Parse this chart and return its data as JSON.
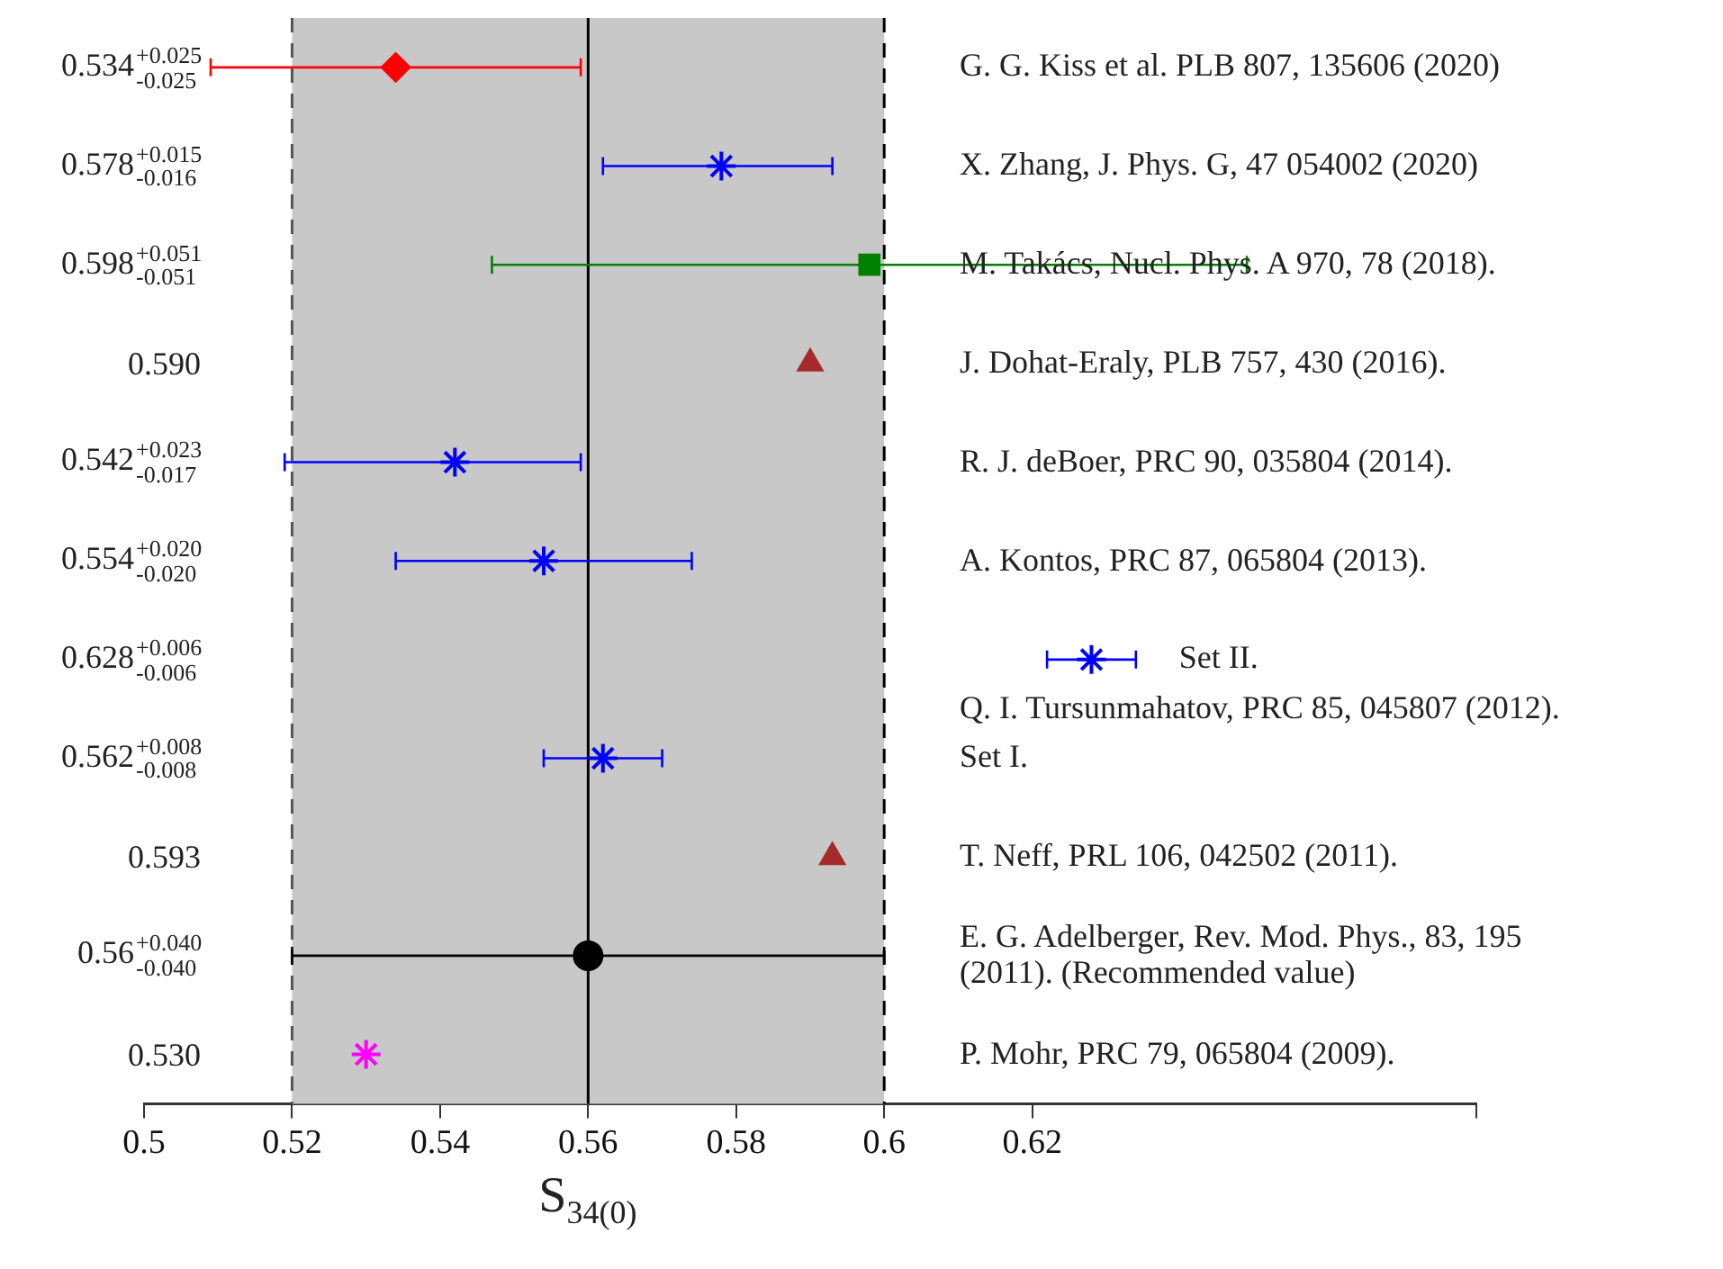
{
  "chart_data": {
    "type": "scatter",
    "orientation": "horizontal",
    "xlabel": "S$_{34(0)}$",
    "categories": [
      "0.534$^{+0.025}$$_{-0.025}$",
      "0.578$^{+0.015}$$_{-0.016}$",
      "0.598$^{+0.051}$$_{-0.051}$",
      "0.590",
      "0.542$^{+0.023}$$_{-0.017}$",
      "0.554$^{+0.020}$$_{-0.020}$",
      "0.628$^{+0.006}$$_{-0.006}$",
      "0.562$^{+0.008}$$_{-0.008}$",
      "0.593",
      "0.56$^{+0.040}$$_{-0.040}$",
      "0.530"
    ],
    "y2_categories": [
      "G. G. Kiss et al. PLB 807, 135606 (2020)",
      "X. Zhang, J. Phys. G, 47 054002 (2020)",
      "M. Takács, Nucl. Phys. A 970, 78 (2018).",
      "J. Dohat-Eraly, PLB 757, 430 (2016).",
      "R. J. deBoer, PRC 90, 035804 (2014).",
      "A. Kontos, PRC 87, 065804 (2013).",
      "Set II.",
      "Set I.",
      "T. Neff, PRL 106, 042502 (2011).",
      "E. G. Adelberger, Rev. Mod. Phys., 83, 195 (2011). (Recommended value)",
      "P. Mohr, PRC 79, 065804 (2009)."
    ],
    "annotations": [
      "Q. I. Tursunmahatov, PRC 85, 045807 (2012)."
    ],
    "series": [
      {
        "color": "#ff0000",
        "marker": "diamond",
        "values": [
          0.534,
          null,
          null,
          null,
          null,
          null,
          null,
          null,
          null,
          null,
          null
        ],
        "errors": [
          [
            0.509,
            0.559
          ],
          null,
          null,
          null,
          null,
          null,
          null,
          null,
          null,
          null,
          null
        ]
      },
      {
        "color": "#0000ff",
        "marker": "cross",
        "values": [
          null,
          0.578,
          null,
          null,
          0.542,
          0.554,
          0.628,
          0.562,
          null,
          null,
          null
        ],
        "errors": [
          null,
          [
            0.562,
            0.593
          ],
          null,
          null,
          [
            0.519,
            0.559
          ],
          [
            0.534,
            0.574
          ],
          [
            0.622,
            0.634
          ],
          [
            0.554,
            0.57
          ],
          null,
          null,
          null
        ]
      },
      {
        "color": "#008000",
        "marker": "square",
        "values": [
          null,
          null,
          0.598,
          null,
          null,
          null,
          null,
          null,
          null,
          null,
          null
        ],
        "errors": [
          null,
          null,
          [
            0.547,
            0.649
          ],
          null,
          null,
          null,
          null,
          null,
          null,
          null,
          null
        ]
      },
      {
        "color": "#a52a2a",
        "marker": "triangle",
        "values": [
          null,
          null,
          null,
          0.59,
          null,
          null,
          null,
          null,
          0.593,
          null,
          null
        ]
      },
      {
        "color": "#000000",
        "marker": "circle",
        "values": [
          null,
          null,
          null,
          null,
          null,
          null,
          null,
          null,
          null,
          0.56,
          null
        ],
        "errors": [
          null,
          null,
          null,
          null,
          null,
          null,
          null,
          null,
          null,
          [
            0.52,
            0.6
          ],
          null
        ]
      },
      {
        "color": "#ff00ff",
        "marker": "cross",
        "values": [
          null,
          null,
          null,
          null,
          null,
          null,
          null,
          null,
          null,
          null,
          0.53
        ]
      }
    ],
    "xlim": [
      0.5,
      0.68
    ],
    "xticks": [
      0.5,
      0.52,
      0.54,
      0.56,
      0.58,
      0.6,
      0.62,
      {
        "value": 0.68,
        "label": null
      }
    ],
    "bands": [
      {
        "axis": "x",
        "from": 0.52,
        "to": 0.6,
        "color": "#c8c8c8"
      }
    ],
    "ref_lines": [
      {
        "axis": "x",
        "value": 0.52,
        "line_style": "dashed",
        "color": "#555555"
      },
      {
        "axis": "x",
        "value": 0.6,
        "line_style": "dashed",
        "color": "#000000"
      },
      {
        "axis": "x",
        "value": 0.56,
        "line_style": "solid",
        "color": "#000000"
      }
    ]
  }
}
